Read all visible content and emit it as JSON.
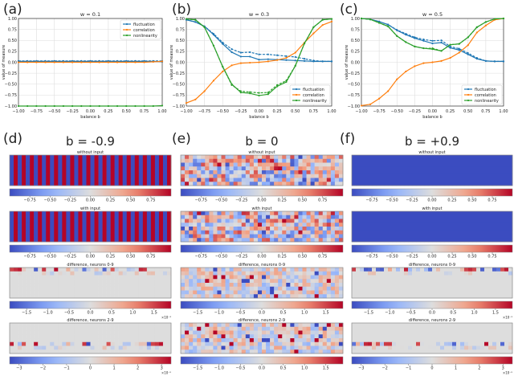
{
  "panel_labels": [
    "(a)",
    "(b)",
    "(c)",
    "(d)",
    "(e)",
    "(f)"
  ],
  "chart_data": [
    {
      "type": "line",
      "title": "w = 0.1",
      "xlabel": "balance b",
      "ylabel": "value of measure",
      "xlim": [
        -1,
        1
      ],
      "ylim": [
        -1,
        1
      ],
      "grid": true,
      "legend": "top-right",
      "xticks": [
        "−1.00",
        "−0.75",
        "−0.50",
        "−0.25",
        "0.00",
        "0.25",
        "0.50",
        "0.75",
        "1.00"
      ],
      "yticks": [
        "−1.00",
        "−0.75",
        "−0.50",
        "−0.25",
        "0.00",
        "0.25",
        "0.50",
        "0.75",
        "1.00"
      ],
      "x": [
        -1,
        -0.875,
        -0.75,
        -0.625,
        -0.5,
        -0.375,
        -0.25,
        -0.125,
        0,
        0.125,
        0.25,
        0.375,
        0.5,
        0.625,
        0.75,
        0.875,
        1
      ],
      "series": [
        {
          "name": "fluctuation",
          "color": "#1f77b4",
          "values": [
            0.02,
            0.02,
            0.02,
            0.02,
            0.02,
            0.02,
            0.02,
            0.02,
            0.02,
            0.02,
            0.02,
            0.02,
            0.02,
            0.02,
            0.02,
            0.02,
            0.01
          ],
          "dashed": [
            0.03,
            0.03,
            0.03,
            0.03,
            0.03,
            0.03,
            0.03,
            0.03,
            0.03,
            0.03,
            0.03,
            0.03,
            0.03,
            0.03,
            0.03,
            0.03,
            0.03
          ]
        },
        {
          "name": "correlation",
          "color": "#ff7f0e",
          "values": [
            0,
            0,
            0,
            0,
            0,
            0,
            0,
            0,
            0,
            0,
            0,
            0,
            0,
            0,
            0,
            0.01,
            0.02
          ]
        },
        {
          "name": "nonlinearity",
          "color": "#2ca02c",
          "values": [
            -1,
            -1,
            -1,
            -1,
            -1,
            -1,
            -1,
            -1,
            -1,
            -1,
            -1,
            -1,
            -1,
            -1,
            -1,
            -1,
            -0.99
          ]
        }
      ]
    },
    {
      "type": "line",
      "title": "w = 0.3",
      "xlabel": "balance b",
      "ylabel": "value of measure",
      "xlim": [
        -1,
        1
      ],
      "ylim": [
        -1,
        1
      ],
      "grid": true,
      "legend": "bottom-right",
      "xticks": [
        "−1.00",
        "−0.75",
        "−0.50",
        "−0.25",
        "0.00",
        "0.25",
        "0.50",
        "0.75",
        "1.00"
      ],
      "yticks": [
        "−1.00",
        "−0.75",
        "−0.50",
        "−0.25",
        "0.00",
        "0.25",
        "0.50",
        "0.75",
        "1.00"
      ],
      "x": [
        -1,
        -0.875,
        -0.75,
        -0.625,
        -0.5,
        -0.375,
        -0.25,
        -0.125,
        0,
        0.125,
        0.25,
        0.375,
        0.5,
        0.625,
        0.75,
        0.875,
        1
      ],
      "series": [
        {
          "name": "fluctuation",
          "color": "#1f77b4",
          "values": [
            0.97,
            0.92,
            0.82,
            0.63,
            0.42,
            0.23,
            0.13,
            0.13,
            0.06,
            0.07,
            0.06,
            0.05,
            0.04,
            0.03,
            0.02,
            0.02,
            0.02
          ],
          "dashed": [
            0.97,
            0.92,
            0.82,
            0.65,
            0.45,
            0.3,
            0.22,
            0.23,
            0.18,
            0.18,
            0.16,
            0.14,
            0.12,
            0.08,
            0.04,
            0.02,
            0.02
          ]
        },
        {
          "name": "correlation",
          "color": "#ff7f0e",
          "values": [
            -0.93,
            -0.85,
            -0.66,
            -0.42,
            -0.21,
            -0.07,
            -0.02,
            -0.01,
            0,
            0.02,
            0.05,
            0.1,
            0.22,
            0.45,
            0.66,
            0.85,
            0.93
          ]
        },
        {
          "name": "nonlinearity",
          "color": "#2ca02c",
          "values": [
            0.99,
            0.97,
            0.8,
            0.38,
            -0.1,
            -0.5,
            -0.69,
            -0.71,
            -0.76,
            -0.73,
            -0.55,
            -0.45,
            -0.08,
            0.43,
            0.8,
            0.97,
            0.99
          ],
          "dashed": [
            0.99,
            0.97,
            0.8,
            0.38,
            -0.1,
            -0.52,
            -0.66,
            -0.68,
            -0.7,
            -0.69,
            -0.52,
            -0.42,
            -0.08,
            0.43,
            0.8,
            0.97,
            0.99
          ]
        }
      ]
    },
    {
      "type": "line",
      "title": "w = 0.5",
      "xlabel": "balance b",
      "ylabel": "value of measure",
      "xlim": [
        -1,
        1
      ],
      "ylim": [
        -1,
        1
      ],
      "grid": true,
      "legend": "bottom-right",
      "xticks": [
        "−1.00",
        "−0.75",
        "−0.50",
        "−0.25",
        "0.00",
        "0.25",
        "0.50",
        "0.75",
        "1.00"
      ],
      "yticks": [
        "−1.00",
        "−0.75",
        "−0.50",
        "−0.25",
        "0.00",
        "0.25",
        "0.50",
        "0.75",
        "1.00"
      ],
      "x": [
        -1,
        -0.875,
        -0.75,
        -0.625,
        -0.5,
        -0.375,
        -0.25,
        -0.125,
        0,
        0.125,
        0.25,
        0.375,
        0.5,
        0.625,
        0.75,
        0.875,
        1
      ],
      "series": [
        {
          "name": "fluctuation",
          "color": "#1f77b4",
          "values": [
            1,
            0.98,
            0.93,
            0.86,
            0.73,
            0.63,
            0.55,
            0.49,
            0.43,
            0.45,
            0.33,
            0.28,
            0.18,
            0.08,
            0.03,
            0.02,
            0.02
          ],
          "dashed": [
            1,
            0.98,
            0.93,
            0.86,
            0.74,
            0.65,
            0.57,
            0.52,
            0.49,
            0.5,
            0.36,
            0.31,
            0.21,
            0.1,
            0.03,
            0.02,
            0.02
          ]
        },
        {
          "name": "correlation",
          "color": "#ff7f0e",
          "values": [
            -0.99,
            -0.96,
            -0.83,
            -0.66,
            -0.39,
            -0.21,
            -0.09,
            -0.02,
            0,
            0.03,
            0.1,
            0.22,
            0.39,
            0.68,
            0.84,
            0.97,
            1
          ]
        },
        {
          "name": "nonlinearity",
          "color": "#2ca02c",
          "values": [
            1,
            0.98,
            0.9,
            0.82,
            0.6,
            0.46,
            0.36,
            0.32,
            0.3,
            0.26,
            0.4,
            0.42,
            0.57,
            0.8,
            0.92,
            0.99,
            1
          ],
          "dashed": [
            1,
            0.98,
            0.9,
            0.82,
            0.6,
            0.46,
            0.36,
            0.32,
            0.32,
            0.26,
            0.4,
            0.42,
            0.57,
            0.8,
            0.92,
            0.99,
            1
          ]
        }
      ]
    }
  ],
  "heatmap_columns": [
    {
      "header": "b = -0.9",
      "pattern": "alternating",
      "panels": [
        {
          "title": "without input",
          "cbar": [
            -1,
            1
          ],
          "ticks": [
            -0.75,
            -0.5,
            -0.25,
            0,
            0.25,
            0.5,
            0.75
          ],
          "tick_labels": [
            "−0.75",
            "−0.50",
            "−0.25",
            "0.00",
            "0.25",
            "0.50",
            "0.75"
          ],
          "exp": ""
        },
        {
          "title": "with input",
          "cbar": [
            -1,
            1
          ],
          "ticks": [
            -0.75,
            -0.5,
            -0.25,
            0,
            0.25,
            0.5,
            0.75
          ],
          "tick_labels": [
            "−0.75",
            "−0.50",
            "−0.25",
            "0.00",
            "0.25",
            "0.50",
            "0.75"
          ],
          "exp": ""
        },
        {
          "title": "difference, neurons 0-9",
          "cbar": [
            -1.9,
            1.9
          ],
          "ticks": [
            -1.5,
            -1,
            -0.5,
            0,
            0.5,
            1,
            1.5
          ],
          "tick_labels": [
            "−1.5",
            "−1.0",
            "−0.5",
            "0.0",
            "0.5",
            "1.0",
            "1.5"
          ],
          "exp": "×10⁻³"
        },
        {
          "title": "difference, neurons 2-9",
          "cbar": [
            -3.4,
            3.4
          ],
          "ticks": [
            -3,
            -2,
            -1,
            0,
            1,
            2,
            3
          ],
          "tick_labels": [
            "−3",
            "−2",
            "−1",
            "0",
            "1",
            "2",
            "3"
          ],
          "exp": "×10⁻⁵"
        }
      ]
    },
    {
      "header": "b = 0",
      "pattern": "random",
      "panels": [
        {
          "title": "without input",
          "cbar": [
            -1,
            1
          ],
          "ticks": [
            -0.75,
            -0.5,
            -0.25,
            0,
            0.25,
            0.5,
            0.75
          ],
          "tick_labels": [
            "−0.75",
            "−0.50",
            "−0.25",
            "0.00",
            "0.25",
            "0.50",
            "0.75"
          ],
          "exp": ""
        },
        {
          "title": "with input",
          "cbar": [
            -1,
            1
          ],
          "ticks": [
            -0.75,
            -0.5,
            -0.25,
            0,
            0.25,
            0.5,
            0.75
          ],
          "tick_labels": [
            "−0.75",
            "−0.50",
            "−0.25",
            "0.00",
            "0.25",
            "0.50",
            "0.75"
          ],
          "exp": ""
        },
        {
          "title": "difference, neurons 0-9",
          "cbar": [
            -1.9,
            1.9
          ],
          "ticks": [
            -1.5,
            -1,
            -0.5,
            0,
            0.5,
            1,
            1.5
          ],
          "tick_labels": [
            "−1.5",
            "−1.0",
            "−0.5",
            "0.0",
            "0.5",
            "1.0",
            "1.5"
          ],
          "exp": ""
        },
        {
          "title": "difference, neurons 2-9",
          "cbar": [
            -1.9,
            1.9
          ],
          "ticks": [
            -1.5,
            -1,
            -0.5,
            0,
            0.5,
            1,
            1.5
          ],
          "tick_labels": [
            "−1.5",
            "−1.0",
            "−0.5",
            "0.0",
            "0.5",
            "1.0",
            "1.5"
          ],
          "exp": ""
        }
      ]
    },
    {
      "header": "b = +0.9",
      "pattern": "uniform",
      "panels": [
        {
          "title": "without input",
          "cbar": [
            -1,
            1
          ],
          "ticks": [
            -0.75,
            -0.5,
            -0.25,
            0,
            0.25,
            0.5,
            0.75
          ],
          "tick_labels": [
            "−0.75",
            "−0.50",
            "−0.25",
            "0.00",
            "0.25",
            "0.50",
            "0.75"
          ],
          "exp": ""
        },
        {
          "title": "with input",
          "cbar": [
            -1,
            1
          ],
          "ticks": [
            -0.75,
            -0.5,
            -0.25,
            0,
            0.25,
            0.5,
            0.75
          ],
          "tick_labels": [
            "−0.75",
            "−0.50",
            "−0.25",
            "0.00",
            "0.25",
            "0.50",
            "0.75"
          ],
          "exp": ""
        },
        {
          "title": "difference, neurons 0-9",
          "cbar": [
            -1.9,
            1.9
          ],
          "ticks": [
            -1.5,
            -1,
            -0.5,
            0,
            0.5,
            1,
            1.5
          ],
          "tick_labels": [
            "−1.5",
            "−1.0",
            "−0.5",
            "0.0",
            "0.5",
            "1.0",
            "1.5"
          ],
          "exp": "×10⁻³"
        },
        {
          "title": "difference, neurons 2-9",
          "cbar": [
            -3.4,
            3.4
          ],
          "ticks": [
            -3,
            -2,
            -1,
            0,
            1,
            2,
            3
          ],
          "tick_labels": [
            "−3",
            "−2",
            "−1",
            "0",
            "1",
            "2",
            "3"
          ],
          "exp": "×10⁻⁵"
        }
      ]
    }
  ]
}
